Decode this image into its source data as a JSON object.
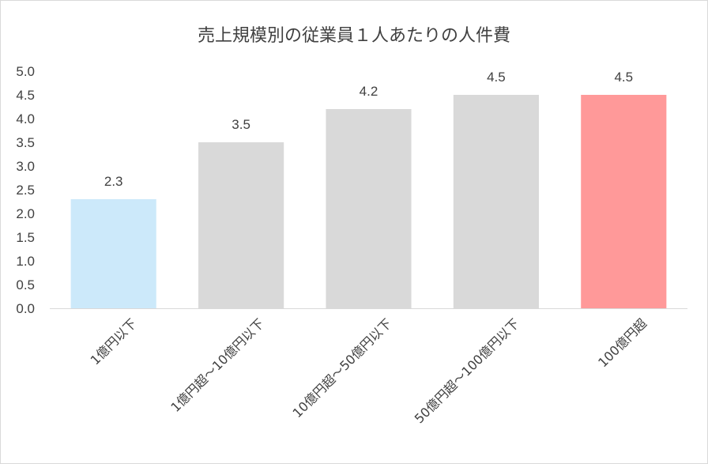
{
  "chart_data": {
    "type": "bar",
    "title": "売上規模別の従業員１人あたりの人件費",
    "categories": [
      "1億円以下",
      "1億円超～10億円以下",
      "10億円超～50億円以下",
      "50億円超～100億円以下",
      "100億円超"
    ],
    "values": [
      2.3,
      3.5,
      4.2,
      4.5,
      4.5
    ],
    "value_labels": [
      "2.3",
      "3.5",
      "4.2",
      "4.5",
      "4.5"
    ],
    "bar_colors": [
      "#cce9fa",
      "#d9d9d9",
      "#d9d9d9",
      "#d9d9d9",
      "#ff9999"
    ],
    "yticks": [
      "0.0",
      "0.5",
      "1.0",
      "1.5",
      "2.0",
      "2.5",
      "3.0",
      "3.5",
      "4.0",
      "4.5",
      "5.0"
    ],
    "ylim": [
      0,
      5
    ],
    "xlabel": "",
    "ylabel": "",
    "grid": false,
    "legend": "none"
  }
}
